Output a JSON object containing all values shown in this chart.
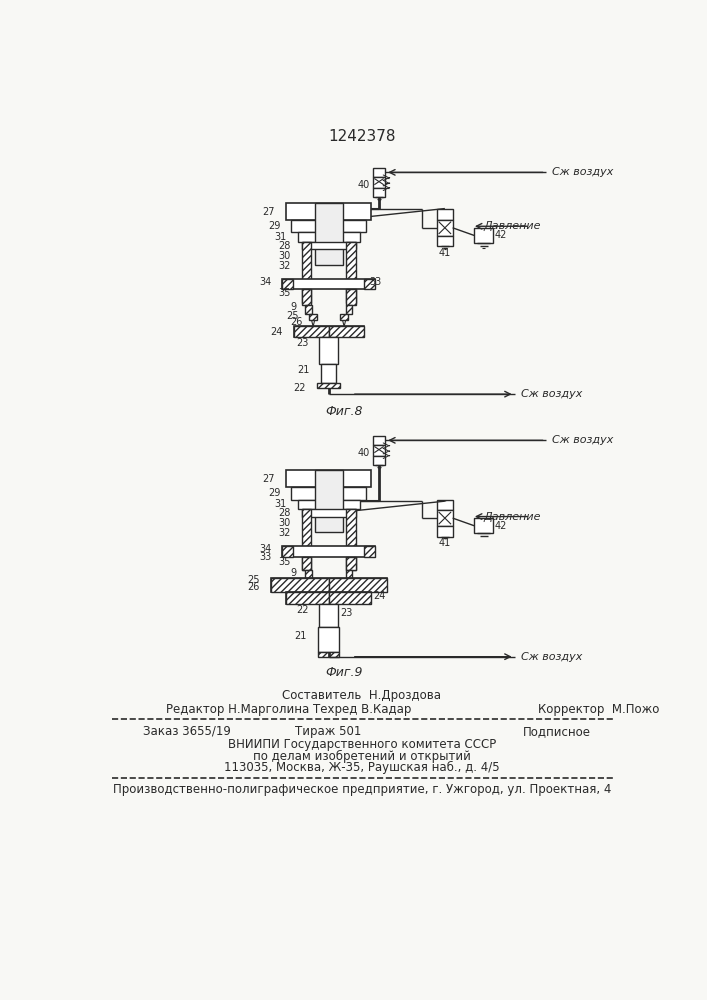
{
  "patent_number": "1242378",
  "fig8_label": "Фиг.8",
  "fig9_label": "Фиг.9",
  "sj_vozduh": "Сж воздух",
  "davlenie": "Давление",
  "composer": "Составитель  Н.Дроздова",
  "editor": "Редактор Н.Марголина",
  "tehred": "Техред В.Кадар",
  "corrector": "Корректор  М.Пожо",
  "order_line": "Заказ 3655/19",
  "tirazh": "Тираж 501",
  "podpisnoe": "Подписное",
  "vnipi_line1": "ВНИИПИ Государственного комитета СССР",
  "vnipi_line2": "по делам изобретений и открытий",
  "vnipi_line3": "113035, Москва, Ж-35, Раушская наб., д. 4/5",
  "factory_line": "Производственно-полиграфическое предприятие, г. Ужгород, ул. Проектная, 4",
  "bg_color": "#f8f8f5",
  "line_color": "#2a2a2a",
  "hatch_color": "#555555"
}
